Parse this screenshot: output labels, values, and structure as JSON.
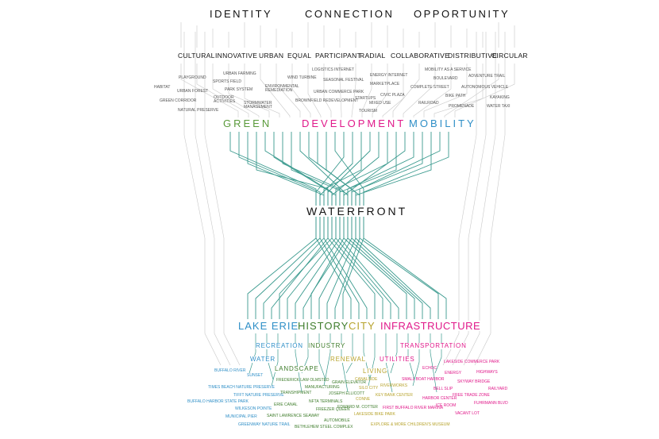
{
  "colors": {
    "green": "#5a9a3a",
    "magenta": "#e0198a",
    "blue": "#2f8fc7",
    "teal": "#3a9a8e",
    "olive": "#b7a32c",
    "dark_green": "#3f7d2c",
    "grey_line": "#c8c8c8"
  },
  "top_headings": [
    "IDENTITY",
    "CONNECTION",
    "OPPORTUNITY"
  ],
  "qualities": [
    "CULTURAL",
    "INNOVATIVE",
    "URBAN",
    "EQUAL",
    "PARTICIPANT",
    "RADIAL",
    "COLLABORATIVE",
    "DISTRIBUTIVE",
    "CIRCULAR"
  ],
  "concepts": [
    "PLAYGROUND",
    "URBAN FARMING",
    "SPORTS FIELD",
    "HABITAT",
    "URBAN FOREST",
    "PARK SYSTEM",
    "GREEN CORRIDOR",
    "OUTDOOR ACTIVITIES",
    "NATURAL PRESERVE",
    "STORMWATER MANAGEMENT",
    "ENVIRONMENTAL REMEDIATION",
    "WIND TURBINE",
    "LOGISTICS INTERNET",
    "SEASONAL FESTIVAL",
    "URBAN COMMERCE PARK",
    "BROWNFIELD REDEVELOPMENT",
    "ENERGY INTERNET",
    "MARKETPLACE",
    "STARTUPS",
    "CIVIC PLAZA",
    "MIXED USE",
    "TOURISM",
    "MOBILITY AS A SERVICE",
    "BOULEVARD",
    "ADVENTURE TRAIL",
    "COMPLETE STREET",
    "AUTONOMOUS VEHICLE",
    "BIKE PATH",
    "KAYAKING",
    "RAILROAD",
    "PROMENADE",
    "WATER TAXI"
  ],
  "themes": [
    "GREEN",
    "DEVELOPMENT",
    "MOBILITY"
  ],
  "center": "WATERFRONT",
  "categories": [
    "LAKE ERIE",
    "HISTORY",
    "CITY",
    "INFRASTRUCTURE"
  ],
  "subcategories": [
    "RECREATION",
    "INDUSTRY",
    "TRANSPORTATION",
    "WATER",
    "RENEWAL",
    "UTILITIES",
    "LANDSCAPE",
    "LIVING"
  ],
  "places": [
    "BUFFALO RIVER",
    "SUNSET",
    "TIMES BEACH NATURE PRESERVE",
    "TIFFT NATURE PRESERVE",
    "BUFFALO HARBOR STATE PARK",
    "WILKESON POINTE",
    "MUNICIPAL PIER",
    "GREENWAY NATURE TRAIL",
    "FREDERICK LAW OLMSTED",
    "MANUFACTURING",
    "TRANSHIPMENT",
    "ERIE CANAL",
    "SAINT LAWRENCE SEAWAY",
    "GRAIN ELEVATOR",
    "JOSEPH ELLICOTT",
    "NFTA TERMINALS",
    "FREEZER QUEEN",
    "EDWARD M. COTTER",
    "AUTOMOBILE",
    "BETHLEHEM STEEL COMPLEX",
    "CANALSIDE",
    "SILO CITY",
    "RIVERWORKS",
    "CONNE",
    "KEY BANK CENTER",
    "LAKESIDE BIKE PARK",
    "EXPLORE & MORE CHILDREN'S MUSEUM",
    "ECHOC",
    "LAKESIDE COMMERCE PARK",
    "SMALL BOAT HARBOR",
    "ENERGY",
    "HIGHWAYS",
    "SKYWAY BRIDGE",
    "BELL SLIP",
    "RAILYARD",
    "HARBOR CENTER",
    "FREE TRADE ZONE",
    "FIRST BUFFALO RIVER MARINA",
    "FUHRMANN BLVD",
    "ICE ROOM",
    "VACANT LOT"
  ]
}
